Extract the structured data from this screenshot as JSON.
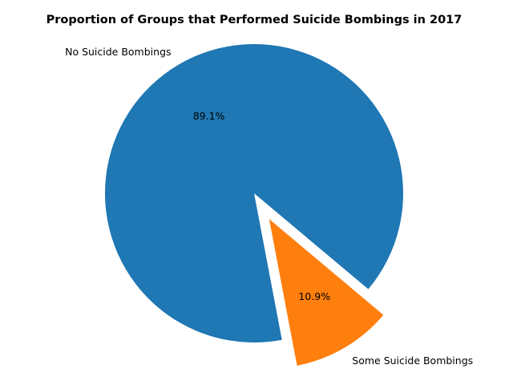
{
  "chart_data": {
    "type": "pie",
    "title": "Proportion of Groups that Performed Suicide Bombings in 2017",
    "slices": [
      {
        "label": "No Suicide Bombings",
        "value": 89.1,
        "pct_label": "89.1%",
        "color": "#1f77b4",
        "explode": 0
      },
      {
        "label": "Some Suicide Bombings",
        "value": 10.9,
        "pct_label": "10.9%",
        "color": "#ff7f0e",
        "explode": 0.2
      }
    ],
    "start_angle_deg": -40,
    "legend": "none",
    "grid": false
  }
}
